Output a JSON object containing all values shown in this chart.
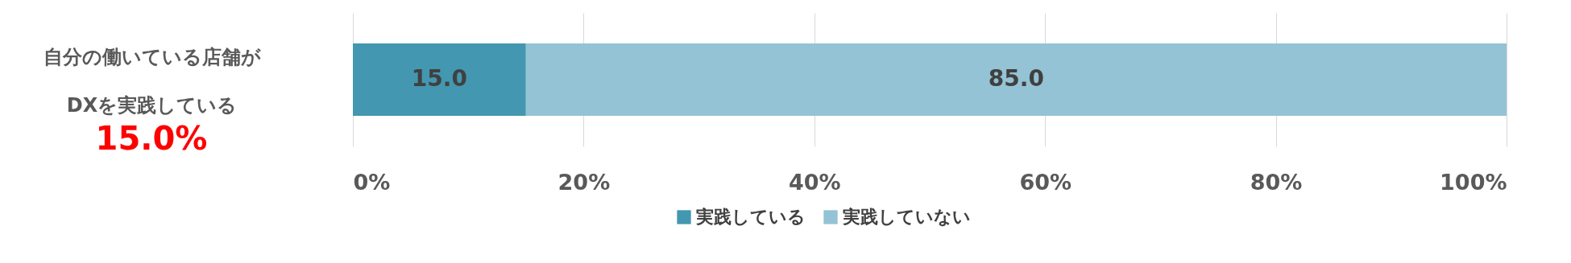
{
  "chart_data": {
    "type": "bar",
    "orientation": "horizontal",
    "stacked": true,
    "categories": [
      "自分の働いている店舗が\nDXを実践している"
    ],
    "series": [
      {
        "name": "実践している",
        "color": "#4397b0",
        "values": [
          15.0
        ],
        "value_labels": [
          "15.0"
        ]
      },
      {
        "name": "実践していない",
        "color": "#93c3d4",
        "values": [
          85.0
        ],
        "value_labels": [
          "85.0"
        ]
      }
    ],
    "xlim": [
      0,
      100
    ],
    "xticks": [
      {
        "value": 0,
        "label": "0%"
      },
      {
        "value": 20,
        "label": "20%"
      },
      {
        "value": 40,
        "label": "40%"
      },
      {
        "value": 60,
        "label": "60%"
      },
      {
        "value": 80,
        "label": "80%"
      },
      {
        "value": 100,
        "label": "100%"
      }
    ],
    "grid": "x",
    "legend": "bottom",
    "annotations": [
      "15.0%"
    ]
  }
}
